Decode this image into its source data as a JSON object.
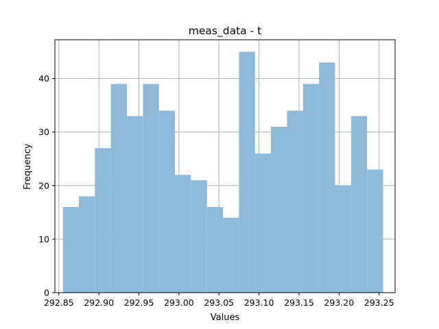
{
  "chart_data": {
    "type": "bar",
    "title": "meas_data - t",
    "xlabel": "Values",
    "ylabel": "Frequency",
    "xlim": [
      292.845,
      293.27
    ],
    "ylim": [
      0,
      47.25
    ],
    "bin_edges": [
      292.855,
      292.875,
      292.895,
      292.915,
      292.935,
      292.955,
      292.975,
      292.995,
      293.015,
      293.035,
      293.055,
      293.075,
      293.095,
      293.115,
      293.135,
      293.155,
      293.175,
      293.195,
      293.215,
      293.235,
      293.255
    ],
    "values": [
      16,
      18,
      27,
      39,
      33,
      39,
      34,
      22,
      21,
      16,
      14,
      45,
      26,
      31,
      34,
      39,
      43,
      20,
      33,
      23
    ],
    "xticks": [
      292.85,
      292.9,
      292.95,
      293.0,
      293.05,
      293.1,
      293.15,
      293.2,
      293.25
    ],
    "xtick_labels": [
      "292.85",
      "292.90",
      "292.95",
      "293.00",
      "293.05",
      "293.10",
      "293.15",
      "293.20",
      "293.25"
    ],
    "yticks": [
      0,
      10,
      20,
      30,
      40
    ],
    "ytick_labels": [
      "0",
      "10",
      "20",
      "30",
      "40"
    ],
    "grid": true,
    "bar_color": "#8fb9d8"
  }
}
